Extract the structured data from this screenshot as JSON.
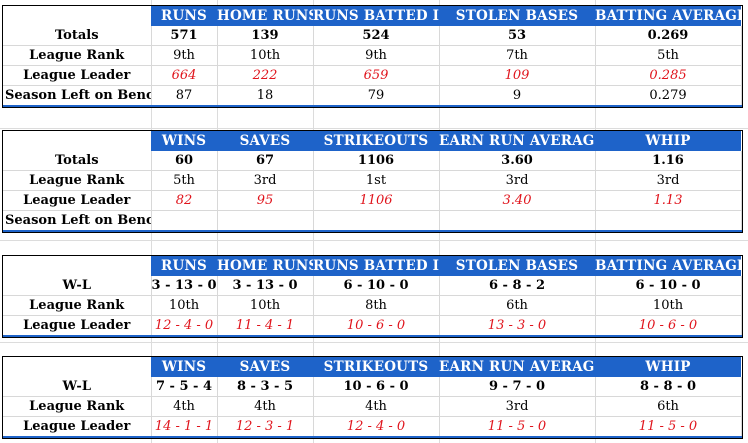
{
  "hitting_totals": {
    "headers": [
      "RUNS",
      "HOME RUNS",
      "RUNS BATTED IN",
      "STOLEN BASES",
      "BATTING AVERAGE"
    ],
    "rows": [
      {
        "label": "Totals",
        "values": [
          "571",
          "139",
          "524",
          "53",
          "0.269"
        ]
      },
      {
        "label": "League Rank",
        "values": [
          "9th",
          "10th",
          "9th",
          "7th",
          "5th"
        ]
      },
      {
        "label": "League Leader",
        "values": [
          "664",
          "222",
          "659",
          "109",
          "0.285"
        ]
      },
      {
        "label": "Season Left on Bench",
        "values": [
          "87",
          "18",
          "79",
          "9",
          "0.279"
        ]
      }
    ]
  },
  "pitching_totals": {
    "headers": [
      "WINS",
      "SAVES",
      "STRIKEOUTS",
      "EARN RUN AVERAGE",
      "WHIP"
    ],
    "rows": [
      {
        "label": "Totals",
        "values": [
          "60",
          "67",
          "1106",
          "3.60",
          "1.16"
        ]
      },
      {
        "label": "League Rank",
        "values": [
          "5th",
          "3rd",
          "1st",
          "3rd",
          "3rd"
        ]
      },
      {
        "label": "League Leader",
        "values": [
          "82",
          "95",
          "1106",
          "3.40",
          "1.13"
        ]
      },
      {
        "label": "Season Left on Bench",
        "values": [
          "",
          "",
          "",
          "",
          ""
        ]
      }
    ]
  },
  "hitting_wl": {
    "headers": [
      "RUNS",
      "HOME RUNS",
      "RUNS BATTED IN",
      "STOLEN BASES",
      "BATTING AVERAGE"
    ],
    "rows": [
      {
        "label": "W-L",
        "values": [
          "3 - 13 - 0",
          "3 - 13 - 0",
          "6 - 10 - 0",
          "6 - 8 - 2",
          "6 - 10 - 0"
        ]
      },
      {
        "label": "League Rank",
        "values": [
          "10th",
          "10th",
          "8th",
          "6th",
          "10th"
        ]
      },
      {
        "label": "League Leader",
        "values": [
          "12 - 4 - 0",
          "11 - 4 - 1",
          "10 - 6 - 0",
          "13 - 3 - 0",
          "10 - 6 - 0"
        ]
      }
    ]
  },
  "pitching_wl": {
    "headers": [
      "WINS",
      "SAVES",
      "STRIKEOUTS",
      "EARN RUN AVERAGE",
      "WHIP"
    ],
    "rows": [
      {
        "label": "W-L",
        "values": [
          "7 - 5 - 4",
          "8 - 3 - 5",
          "10 - 6 - 0",
          "9 - 7 - 0",
          "8 - 8 - 0"
        ]
      },
      {
        "label": "League Rank",
        "values": [
          "4th",
          "4th",
          "4th",
          "3rd",
          "6th"
        ]
      },
      {
        "label": "League Leader",
        "values": [
          "14 - 1 - 1",
          "12 - 3 - 1",
          "12 - 4 - 0",
          "11 - 5 - 0",
          "11 - 5 - 0"
        ]
      }
    ]
  },
  "colors": {
    "header_bg": "#1e63c9",
    "header_text": "#ffffff",
    "leader_text": "#e0141c"
  }
}
